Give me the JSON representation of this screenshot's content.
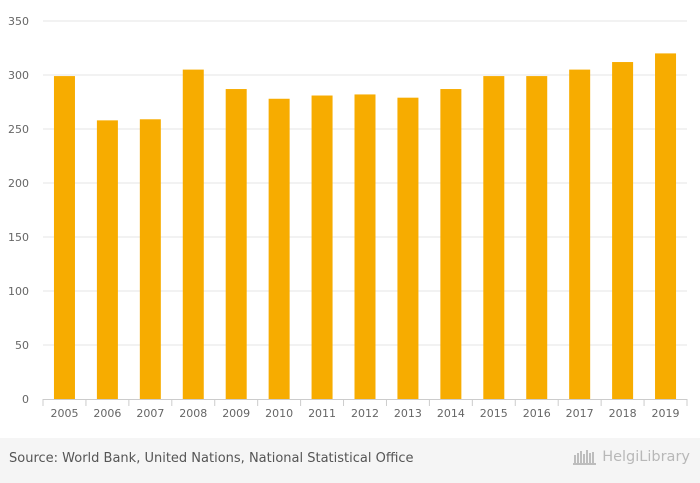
{
  "chart_data": {
    "type": "bar",
    "title": "",
    "xlabel": "",
    "ylabel": "",
    "categories": [
      "2005",
      "2006",
      "2007",
      "2008",
      "2009",
      "2010",
      "2011",
      "2012",
      "2013",
      "2014",
      "2015",
      "2016",
      "2017",
      "2018",
      "2019"
    ],
    "values": [
      299,
      258,
      259,
      305,
      287,
      278,
      281,
      282,
      279,
      287,
      299,
      299,
      305,
      312,
      320
    ],
    "ylim": [
      0,
      350
    ],
    "yticks": [
      0,
      50,
      100,
      150,
      200,
      250,
      300,
      350
    ],
    "grid": true,
    "legend": "none",
    "bar_color": "#f7ac00"
  },
  "footer": {
    "source": "Source: World Bank, United Nations, National Statistical Office",
    "brand": "HelgiLibrary",
    "brand_icon": "library-bookshelf-icon"
  }
}
